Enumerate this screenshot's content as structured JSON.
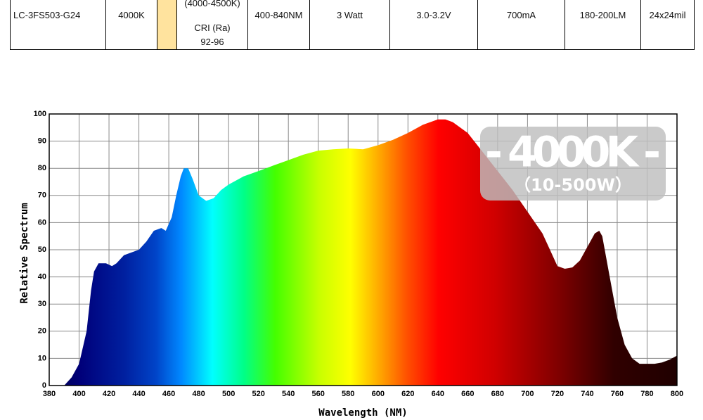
{
  "table": {
    "rows": [
      [
        "LC-3FS503-G24",
        "4000K",
        null,
        [
          "(4000-4500K)",
          "CRI (Ra)",
          "92-96"
        ],
        "400-840NM",
        "3 Watt",
        "3.0-3.2V",
        "700mA",
        "180-200LM",
        "24x24mil"
      ]
    ]
  },
  "chart_data": {
    "type": "area",
    "xlabel": "Wavelength (NM)",
    "ylabel": "Relative Spectrum",
    "annotations": [
      "- 4000K -",
      "（10-500W）"
    ],
    "xlim": [
      380,
      800
    ],
    "xticks": [
      380,
      400,
      420,
      440,
      460,
      480,
      500,
      520,
      540,
      560,
      580,
      600,
      620,
      640,
      660,
      680,
      700,
      720,
      740,
      760,
      780,
      800
    ],
    "ylim": [
      0,
      100
    ],
    "yticks": [
      0,
      10,
      20,
      30,
      40,
      50,
      60,
      70,
      80,
      90,
      100
    ],
    "grid": true,
    "x": [
      390,
      395,
      400,
      405,
      408,
      410,
      413,
      418,
      422,
      425,
      430,
      435,
      440,
      445,
      450,
      455,
      458,
      462,
      465,
      468,
      470,
      473,
      476,
      480,
      485,
      490,
      495,
      500,
      510,
      520,
      530,
      540,
      550,
      560,
      570,
      580,
      590,
      600,
      610,
      620,
      630,
      640,
      645,
      650,
      660,
      670,
      680,
      690,
      700,
      710,
      715,
      720,
      725,
      730,
      735,
      740,
      745,
      748,
      750,
      755,
      760,
      765,
      770,
      775,
      780,
      785,
      790,
      795,
      800
    ],
    "values": [
      0,
      3,
      8,
      20,
      35,
      42,
      45,
      45,
      44,
      45,
      48,
      49,
      50,
      53,
      57,
      58,
      57,
      62,
      70,
      77,
      80,
      80,
      76,
      70,
      68,
      69,
      72,
      74,
      77,
      79,
      81,
      83,
      85,
      86.5,
      87,
      87.3,
      87,
      88.5,
      90.5,
      93,
      96,
      98,
      98,
      97,
      93,
      86,
      79,
      72,
      64,
      56,
      50,
      44,
      43,
      43.5,
      46,
      51,
      56,
      57,
      55,
      40,
      25,
      15,
      10,
      8,
      8,
      8,
      8.5,
      9.5,
      11
    ]
  }
}
